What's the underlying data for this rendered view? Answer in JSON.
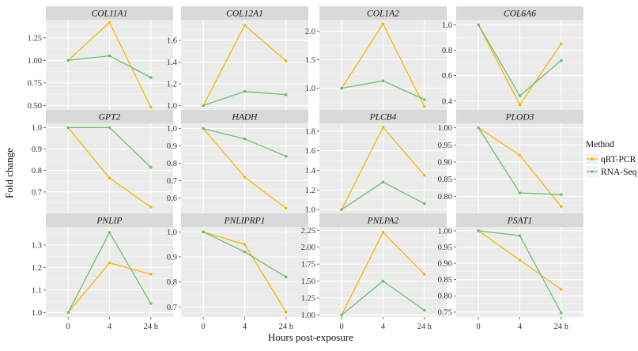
{
  "chart_data": {
    "type": "line",
    "xlabel": "Hours post-exposure",
    "ylabel": "Fold change",
    "x_ticks": [
      "0",
      "4",
      "24 h"
    ],
    "legend": {
      "title": "Method",
      "placement": "right",
      "entries": [
        {
          "name": "qRT-PCR",
          "color": "#f5b800"
        },
        {
          "name": "RNA-Seq",
          "color": "#6fbf73"
        }
      ]
    },
    "panels": [
      {
        "gene": "COL11A1",
        "ylim": [
          0.45,
          1.45
        ],
        "yticks": [
          0.5,
          0.75,
          1.0,
          1.25
        ],
        "series": {
          "qRT-PCR": [
            1.0,
            1.42,
            0.48
          ],
          "RNA-Seq": [
            1.0,
            1.05,
            0.81
          ]
        }
      },
      {
        "gene": "COL12A1",
        "ylim": [
          0.96,
          1.79
        ],
        "yticks": [
          1.0,
          1.2,
          1.4,
          1.6
        ],
        "series": {
          "qRT-PCR": [
            1.0,
            1.74,
            1.41
          ],
          "RNA-Seq": [
            1.0,
            1.13,
            1.1
          ]
        }
      },
      {
        "gene": "COL1A2",
        "ylim": [
          0.62,
          2.2
        ],
        "yticks": [
          1.0,
          1.5,
          2.0
        ],
        "series": {
          "qRT-PCR": [
            1.0,
            2.13,
            0.68
          ],
          "RNA-Seq": [
            1.0,
            1.13,
            0.8
          ]
        }
      },
      {
        "gene": "COL6A6",
        "ylim": [
          0.33,
          1.04
        ],
        "yticks": [
          0.4,
          0.6,
          0.8,
          1.0
        ],
        "series": {
          "qRT-PCR": [
            1.0,
            0.37,
            0.85
          ],
          "RNA-Seq": [
            1.0,
            0.44,
            0.72
          ]
        }
      },
      {
        "gene": "GPT2",
        "ylim": [
          0.6,
          1.02
        ],
        "yticks": [
          0.7,
          0.8,
          0.9,
          1.0
        ],
        "series": {
          "qRT-PCR": [
            1.0,
            0.765,
            0.63
          ],
          "RNA-Seq": [
            1.0,
            1.0,
            0.815
          ]
        }
      },
      {
        "gene": "HADH",
        "ylim": [
          0.51,
          1.03
        ],
        "yticks": [
          0.6,
          0.7,
          0.8,
          0.9,
          1.0
        ],
        "series": {
          "qRT-PCR": [
            1.0,
            0.72,
            0.54
          ],
          "RNA-Seq": [
            1.0,
            0.94,
            0.84
          ]
        }
      },
      {
        "gene": "PLCB4",
        "ylim": [
          0.96,
          1.88
        ],
        "yticks": [
          1.0,
          1.2,
          1.4,
          1.6,
          1.8
        ],
        "series": {
          "qRT-PCR": [
            1.0,
            1.84,
            1.35
          ],
          "RNA-Seq": [
            1.0,
            1.28,
            1.06
          ]
        }
      },
      {
        "gene": "PLOD3",
        "ylim": [
          0.75,
          1.013
        ],
        "yticks": [
          0.8,
          0.85,
          0.9,
          0.95,
          1.0
        ],
        "series": {
          "qRT-PCR": [
            1.0,
            0.92,
            0.77
          ],
          "RNA-Seq": [
            1.0,
            0.81,
            0.805
          ]
        }
      },
      {
        "gene": "PNLIP",
        "ylim": [
          0.98,
          1.38
        ],
        "yticks": [
          1.0,
          1.1,
          1.2,
          1.3
        ],
        "series": {
          "qRT-PCR": [
            1.0,
            1.22,
            1.17
          ],
          "RNA-Seq": [
            1.0,
            1.355,
            1.04
          ]
        }
      },
      {
        "gene": "PNLIPRP1",
        "ylim": [
          0.66,
          1.02
        ],
        "yticks": [
          0.7,
          0.8,
          0.9,
          1.0
        ],
        "series": {
          "qRT-PCR": [
            1.0,
            0.95,
            0.68
          ],
          "RNA-Seq": [
            1.0,
            0.92,
            0.82
          ]
        }
      },
      {
        "gene": "PNLPA2",
        "ylim": [
          0.97,
          2.3
        ],
        "yticks": [
          1.0,
          1.25,
          1.5,
          1.75,
          2.0,
          2.25
        ],
        "series": {
          "qRT-PCR": [
            1.0,
            2.22,
            1.6
          ],
          "RNA-Seq": [
            1.0,
            1.5,
            1.07
          ]
        }
      },
      {
        "gene": "PSAT1",
        "ylim": [
          0.735,
          1.012
        ],
        "yticks": [
          0.75,
          0.8,
          0.85,
          0.9,
          0.95,
          1.0
        ],
        "series": {
          "qRT-PCR": [
            1.0,
            0.91,
            0.82
          ],
          "RNA-Seq": [
            1.0,
            0.985,
            0.748
          ]
        }
      }
    ]
  }
}
